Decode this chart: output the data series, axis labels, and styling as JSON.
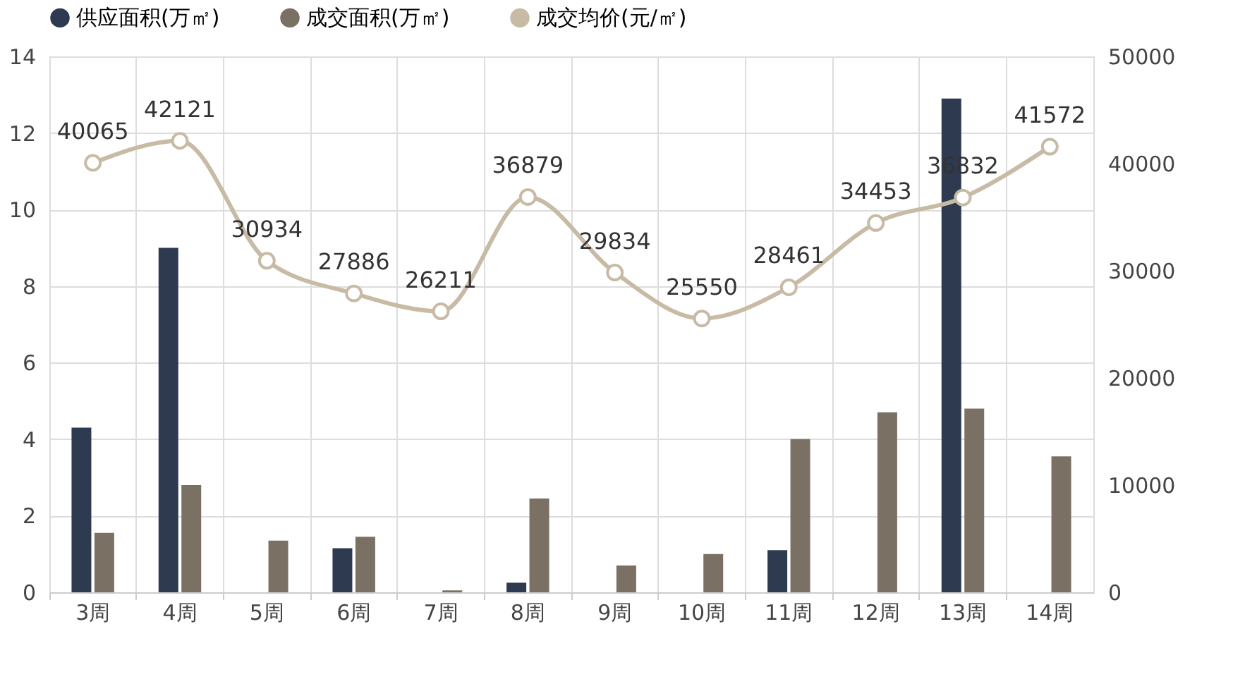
{
  "chart_data": {
    "type": "bar",
    "categories": [
      "3周",
      "4周",
      "5周",
      "6周",
      "7周",
      "8周",
      "9周",
      "10周",
      "11周",
      "12周",
      "13周",
      "14周"
    ],
    "series": [
      {
        "name": "供应面积(万㎡)",
        "color": "#2d3a50",
        "values": [
          4.3,
          9.0,
          0,
          1.15,
          0,
          0.25,
          0,
          0,
          1.1,
          0,
          12.9,
          0
        ]
      },
      {
        "name": "成交面积(万㎡)",
        "color": "#7a7063",
        "values": [
          1.55,
          2.8,
          1.35,
          1.45,
          0.05,
          2.45,
          0.7,
          1.0,
          4.0,
          4.7,
          4.8,
          3.55
        ]
      },
      {
        "name": "成交均价(元/㎡)",
        "color": "#c8bba6",
        "type": "line",
        "axis": "y2",
        "marker": "circle",
        "data_labels": true,
        "values": [
          40065,
          42121,
          30934,
          27886,
          26211,
          36879,
          29834,
          25550,
          28461,
          34453,
          36832,
          41572
        ]
      }
    ],
    "ylim": [
      0,
      14
    ],
    "yticks": [
      0,
      2,
      4,
      6,
      8,
      10,
      12,
      14
    ],
    "y2lim": [
      0,
      50000
    ],
    "y2ticks": [
      0,
      10000,
      20000,
      30000,
      40000,
      50000
    ],
    "grid": true,
    "legend": "top"
  }
}
